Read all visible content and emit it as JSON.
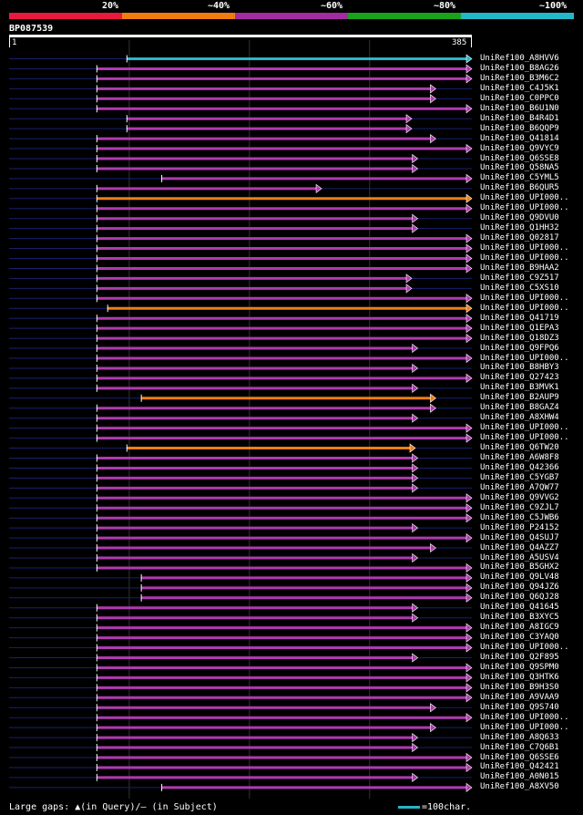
{
  "legend": {
    "labels": [
      "20%",
      "~40%",
      "~60%",
      "~80%",
      "~100%"
    ],
    "colors": [
      "#e8193c",
      "#f07b10",
      "#a22ba2",
      "#1aa21a",
      "#22b8c8"
    ]
  },
  "query": {
    "title": "BP087539",
    "start_label": "1",
    "end_label": "385",
    "length": 385
  },
  "hits": [
    {
      "name": "UniRef100_A8HVV6",
      "start": 98,
      "end": 385,
      "color": "cyan"
    },
    {
      "name": "UniRef100_B8AG26",
      "start": 73,
      "end": 385,
      "color": "magenta"
    },
    {
      "name": "UniRef100_B3M6C2",
      "start": 73,
      "end": 385,
      "color": "magenta"
    },
    {
      "name": "UniRef100_C4J5K1",
      "start": 73,
      "end": 355,
      "color": "magenta"
    },
    {
      "name": "UniRef100_C0PPC0",
      "start": 73,
      "end": 355,
      "color": "magenta"
    },
    {
      "name": "UniRef100_B6U1N0",
      "start": 73,
      "end": 385,
      "color": "magenta"
    },
    {
      "name": "UniRef100_B4R4D1",
      "start": 98,
      "end": 335,
      "color": "magenta"
    },
    {
      "name": "UniRef100_B6QQP9",
      "start": 98,
      "end": 335,
      "color": "magenta"
    },
    {
      "name": "UniRef100_Q41814",
      "start": 73,
      "end": 355,
      "color": "magenta"
    },
    {
      "name": "UniRef100_Q9VYC9",
      "start": 73,
      "end": 385,
      "color": "magenta"
    },
    {
      "name": "UniRef100_Q6SSE8",
      "start": 73,
      "end": 340,
      "color": "magenta"
    },
    {
      "name": "UniRef100_Q58NA5",
      "start": 73,
      "end": 340,
      "color": "magenta"
    },
    {
      "name": "UniRef100_C5YML5",
      "start": 127,
      "end": 385,
      "color": "magenta"
    },
    {
      "name": "UniRef100_B6QUR5",
      "start": 73,
      "end": 260,
      "color": "magenta"
    },
    {
      "name": "UniRef100_UPI000..",
      "start": 73,
      "end": 385,
      "color": "orange"
    },
    {
      "name": "UniRef100_UPI000..",
      "start": 73,
      "end": 385,
      "color": "magenta"
    },
    {
      "name": "UniRef100_Q9DVU0",
      "start": 73,
      "end": 340,
      "color": "magenta"
    },
    {
      "name": "UniRef100_Q1HH32",
      "start": 73,
      "end": 340,
      "color": "magenta"
    },
    {
      "name": "UniRef100_Q02817",
      "start": 73,
      "end": 385,
      "color": "magenta"
    },
    {
      "name": "UniRef100_UPI000..",
      "start": 73,
      "end": 385,
      "color": "magenta"
    },
    {
      "name": "UniRef100_UPI000..",
      "start": 73,
      "end": 385,
      "color": "magenta"
    },
    {
      "name": "UniRef100_B9HAA2",
      "start": 73,
      "end": 385,
      "color": "magenta"
    },
    {
      "name": "UniRef100_C9Z517",
      "start": 73,
      "end": 335,
      "color": "magenta"
    },
    {
      "name": "UniRef100_C5XS10",
      "start": 73,
      "end": 335,
      "color": "magenta"
    },
    {
      "name": "UniRef100_UPI000..",
      "start": 73,
      "end": 385,
      "color": "magenta"
    },
    {
      "name": "UniRef100_UPI000..",
      "start": 82,
      "end": 385,
      "color": "orange"
    },
    {
      "name": "UniRef100_Q41719",
      "start": 73,
      "end": 385,
      "color": "magenta"
    },
    {
      "name": "UniRef100_Q1EPA3",
      "start": 73,
      "end": 385,
      "color": "magenta"
    },
    {
      "name": "UniRef100_Q18DZ3",
      "start": 73,
      "end": 385,
      "color": "magenta"
    },
    {
      "name": "UniRef100_Q9FPQ6",
      "start": 73,
      "end": 340,
      "color": "magenta"
    },
    {
      "name": "UniRef100_UPI000..",
      "start": 73,
      "end": 385,
      "color": "magenta"
    },
    {
      "name": "UniRef100_B8HBY3",
      "start": 73,
      "end": 340,
      "color": "magenta"
    },
    {
      "name": "UniRef100_Q27423",
      "start": 73,
      "end": 385,
      "color": "magenta"
    },
    {
      "name": "UniRef100_B3MVK1",
      "start": 73,
      "end": 340,
      "color": "magenta"
    },
    {
      "name": "UniRef100_B2AUP9",
      "start": 110,
      "end": 355,
      "color": "orange"
    },
    {
      "name": "UniRef100_B8GAZ4",
      "start": 73,
      "end": 355,
      "color": "magenta"
    },
    {
      "name": "UniRef100_A8XHW4",
      "start": 73,
      "end": 340,
      "color": "magenta"
    },
    {
      "name": "UniRef100_UPI000..",
      "start": 73,
      "end": 385,
      "color": "magenta"
    },
    {
      "name": "UniRef100_UPI000..",
      "start": 73,
      "end": 385,
      "color": "magenta"
    },
    {
      "name": "UniRef100_Q6TW20",
      "start": 98,
      "end": 338,
      "color": "orange"
    },
    {
      "name": "UniRef100_A6W8F8",
      "start": 73,
      "end": 340,
      "color": "magenta"
    },
    {
      "name": "UniRef100_Q42366",
      "start": 73,
      "end": 340,
      "color": "magenta"
    },
    {
      "name": "UniRef100_C5YGB7",
      "start": 73,
      "end": 340,
      "color": "magenta"
    },
    {
      "name": "UniRef100_A7QW77",
      "start": 73,
      "end": 340,
      "color": "magenta"
    },
    {
      "name": "UniRef100_Q9VVG2",
      "start": 73,
      "end": 385,
      "color": "magenta"
    },
    {
      "name": "UniRef100_C9ZJL7",
      "start": 73,
      "end": 385,
      "color": "magenta"
    },
    {
      "name": "UniRef100_C5JWB6",
      "start": 73,
      "end": 385,
      "color": "magenta"
    },
    {
      "name": "UniRef100_P24152",
      "start": 73,
      "end": 340,
      "color": "magenta"
    },
    {
      "name": "UniRef100_Q4SUJ7",
      "start": 73,
      "end": 385,
      "color": "magenta"
    },
    {
      "name": "UniRef100_Q4AZZ7",
      "start": 73,
      "end": 355,
      "color": "magenta"
    },
    {
      "name": "UniRef100_A5USV4",
      "start": 73,
      "end": 340,
      "color": "magenta"
    },
    {
      "name": "UniRef100_B5GHX2",
      "start": 73,
      "end": 385,
      "color": "magenta"
    },
    {
      "name": "UniRef100_Q9LV48",
      "start": 110,
      "end": 385,
      "color": "magenta"
    },
    {
      "name": "UniRef100_Q94JZ6",
      "start": 110,
      "end": 385,
      "color": "magenta"
    },
    {
      "name": "UniRef100_Q6QJ28",
      "start": 110,
      "end": 385,
      "color": "magenta"
    },
    {
      "name": "UniRef100_Q41645",
      "start": 73,
      "end": 340,
      "color": "magenta"
    },
    {
      "name": "UniRef100_B3XYC5",
      "start": 73,
      "end": 340,
      "color": "magenta"
    },
    {
      "name": "UniRef100_A8IGC9",
      "start": 73,
      "end": 385,
      "color": "magenta"
    },
    {
      "name": "UniRef100_C3YAQ0",
      "start": 73,
      "end": 385,
      "color": "magenta"
    },
    {
      "name": "UniRef100_UPI000..",
      "start": 73,
      "end": 385,
      "color": "magenta"
    },
    {
      "name": "UniRef100_Q2F895",
      "start": 73,
      "end": 340,
      "color": "magenta"
    },
    {
      "name": "UniRef100_Q9SPM0",
      "start": 73,
      "end": 385,
      "color": "magenta"
    },
    {
      "name": "UniRef100_Q3HTK6",
      "start": 73,
      "end": 385,
      "color": "magenta"
    },
    {
      "name": "UniRef100_B9H3S0",
      "start": 73,
      "end": 385,
      "color": "magenta"
    },
    {
      "name": "UniRef100_A9VAA9",
      "start": 73,
      "end": 385,
      "color": "magenta"
    },
    {
      "name": "UniRef100_Q9S740",
      "start": 73,
      "end": 355,
      "color": "magenta"
    },
    {
      "name": "UniRef100_UPI000..",
      "start": 73,
      "end": 385,
      "color": "magenta"
    },
    {
      "name": "UniRef100_UPI000..",
      "start": 73,
      "end": 355,
      "color": "magenta"
    },
    {
      "name": "UniRef100_A8Q633",
      "start": 73,
      "end": 340,
      "color": "magenta"
    },
    {
      "name": "UniRef100_C7Q6B1",
      "start": 73,
      "end": 340,
      "color": "magenta"
    },
    {
      "name": "UniRef100_Q6SSE6",
      "start": 73,
      "end": 385,
      "color": "magenta"
    },
    {
      "name": "UniRef100_Q42421",
      "start": 73,
      "end": 385,
      "color": "magenta"
    },
    {
      "name": "UniRef100_A0N015",
      "start": 73,
      "end": 340,
      "color": "magenta"
    },
    {
      "name": "UniRef100_A8XV50",
      "start": 127,
      "end": 385,
      "color": "magenta"
    }
  ],
  "footer": {
    "left_text": "Large gaps: ▲(in Query)/— (in Subject)",
    "right_text": "=100char."
  },
  "colors": {
    "magenta": "#b03ab0",
    "orange": "#ee7e16",
    "cyan": "#2ab6c7",
    "gap_line": "#1a1f6e",
    "marker": "#fff7a0",
    "grid": "#555555"
  }
}
